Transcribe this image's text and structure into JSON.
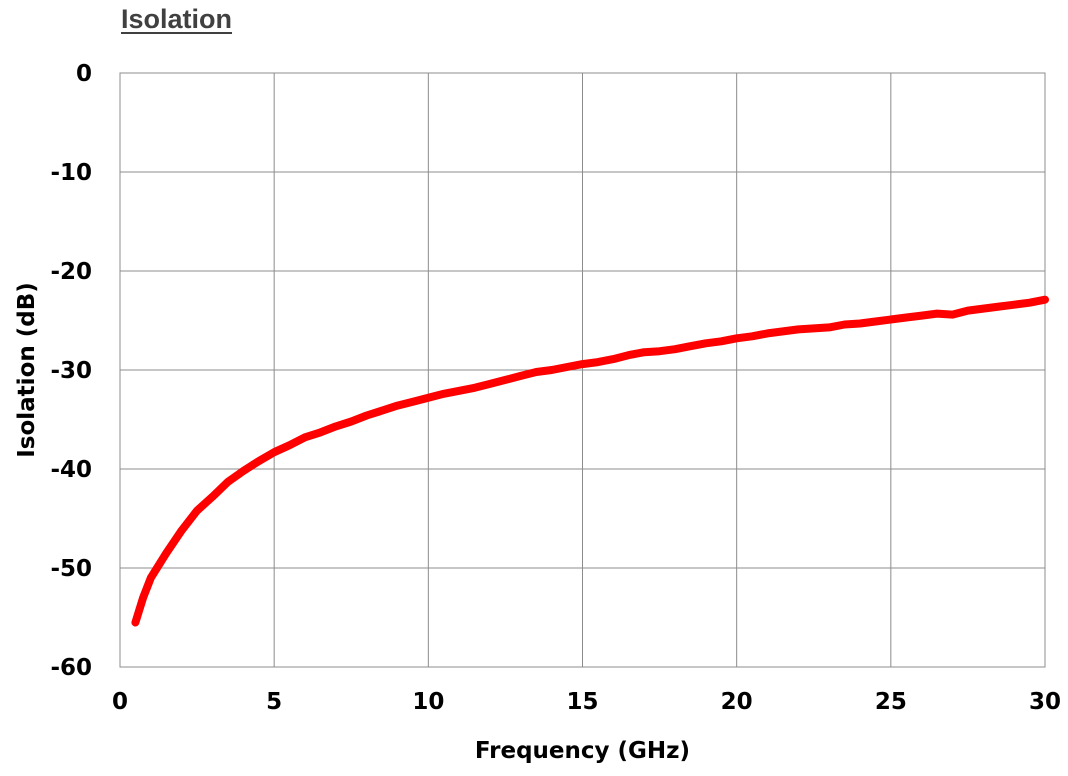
{
  "chart_data": {
    "type": "line",
    "title": "Isolation",
    "xlabel": "Frequency (GHz)",
    "ylabel": "Isolation (dB)",
    "xlim": [
      0,
      30
    ],
    "ylim": [
      -60,
      0
    ],
    "xticks": [
      0,
      5,
      10,
      15,
      20,
      25,
      30
    ],
    "yticks": [
      0,
      -10,
      -20,
      -30,
      -40,
      -50,
      -60
    ],
    "xtick_labels": [
      "0",
      "5",
      "10",
      "15",
      "20",
      "25",
      "30"
    ],
    "ytick_labels": [
      "0",
      "-10",
      "-20",
      "-30",
      "-40",
      "-50",
      "-60"
    ],
    "grid": true,
    "legend": "none",
    "line_color": "#ff0000",
    "series": [
      {
        "x": [
          0.5,
          0.75,
          1.0,
          1.5,
          2.0,
          2.5,
          3.0,
          3.5,
          4.0,
          4.5,
          5.0,
          5.5,
          6.0,
          6.5,
          7.0,
          7.5,
          8.0,
          8.5,
          9.0,
          9.5,
          10.0,
          10.5,
          11.0,
          11.5,
          12.0,
          12.5,
          13.0,
          13.5,
          14.0,
          14.5,
          15.0,
          15.5,
          16.0,
          16.5,
          17.0,
          17.5,
          18.0,
          18.5,
          19.0,
          19.5,
          20.0,
          20.5,
          21.0,
          21.5,
          22.0,
          22.5,
          23.0,
          23.5,
          24.0,
          24.5,
          25.0,
          25.5,
          26.0,
          26.5,
          27.0,
          27.5,
          28.0,
          28.5,
          29.0,
          29.5,
          30.0
        ],
        "y": [
          -55.5,
          -53.0,
          -51.0,
          -48.5,
          -46.2,
          -44.2,
          -42.8,
          -41.3,
          -40.2,
          -39.2,
          -38.3,
          -37.6,
          -36.8,
          -36.3,
          -35.7,
          -35.2,
          -34.6,
          -34.1,
          -33.6,
          -33.2,
          -32.8,
          -32.4,
          -32.1,
          -31.8,
          -31.4,
          -31.0,
          -30.6,
          -30.2,
          -30.0,
          -29.7,
          -29.4,
          -29.2,
          -28.9,
          -28.5,
          -28.2,
          -28.1,
          -27.9,
          -27.6,
          -27.3,
          -27.1,
          -26.8,
          -26.6,
          -26.3,
          -26.1,
          -25.9,
          -25.8,
          -25.7,
          -25.4,
          -25.3,
          -25.1,
          -24.9,
          -24.7,
          -24.5,
          -24.3,
          -24.4,
          -24.0,
          -23.8,
          -23.6,
          -23.4,
          -23.2,
          -22.9
        ]
      }
    ]
  }
}
